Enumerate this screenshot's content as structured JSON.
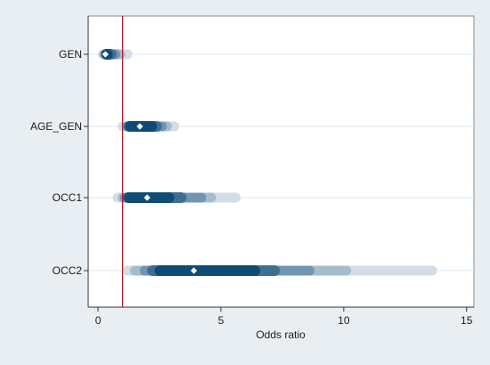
{
  "chart_data": {
    "type": "smoothed-ci",
    "xlabel": "Odds ratio",
    "ylabel": "",
    "xlim": [
      -0.4,
      15.3
    ],
    "x_ticks": [
      0,
      5,
      10,
      15
    ],
    "reference_line": 1,
    "grid": true,
    "legend": "none",
    "colors": {
      "background": "#e9eef2",
      "plot_area": "#ffffff",
      "band_levels": [
        "#d2dde5",
        "#a5bccc",
        "#6f95b0",
        "#3e6f92",
        "#0f4c75"
      ],
      "point": "#ffffff",
      "reference_line": "#b2182b",
      "grid": "#dde7ee"
    },
    "categories": [
      "GEN",
      "AGE_GEN",
      "OCC1",
      "OCC2"
    ],
    "estimates": [
      {
        "label": "GEN",
        "point": 0.3,
        "bands": [
          [
            0.0,
            1.4
          ],
          [
            0.05,
            1.1
          ],
          [
            0.1,
            0.9
          ],
          [
            0.12,
            0.75
          ],
          [
            0.15,
            0.6
          ]
        ]
      },
      {
        "label": "AGE_GEN",
        "point": 1.7,
        "bands": [
          [
            0.8,
            3.3
          ],
          [
            0.95,
            3.0
          ],
          [
            1.0,
            2.8
          ],
          [
            1.05,
            2.6
          ],
          [
            1.1,
            2.4
          ]
        ]
      },
      {
        "label": "OCC1",
        "point": 2.0,
        "bands": [
          [
            0.6,
            5.8
          ],
          [
            0.8,
            4.8
          ],
          [
            0.9,
            4.4
          ],
          [
            1.0,
            3.6
          ],
          [
            1.05,
            3.1
          ]
        ]
      },
      {
        "label": "OCC2",
        "point": 3.9,
        "bands": [
          [
            1.0,
            13.8
          ],
          [
            1.3,
            10.3
          ],
          [
            1.7,
            8.8
          ],
          [
            2.0,
            7.4
          ],
          [
            2.3,
            6.6
          ]
        ]
      }
    ]
  }
}
